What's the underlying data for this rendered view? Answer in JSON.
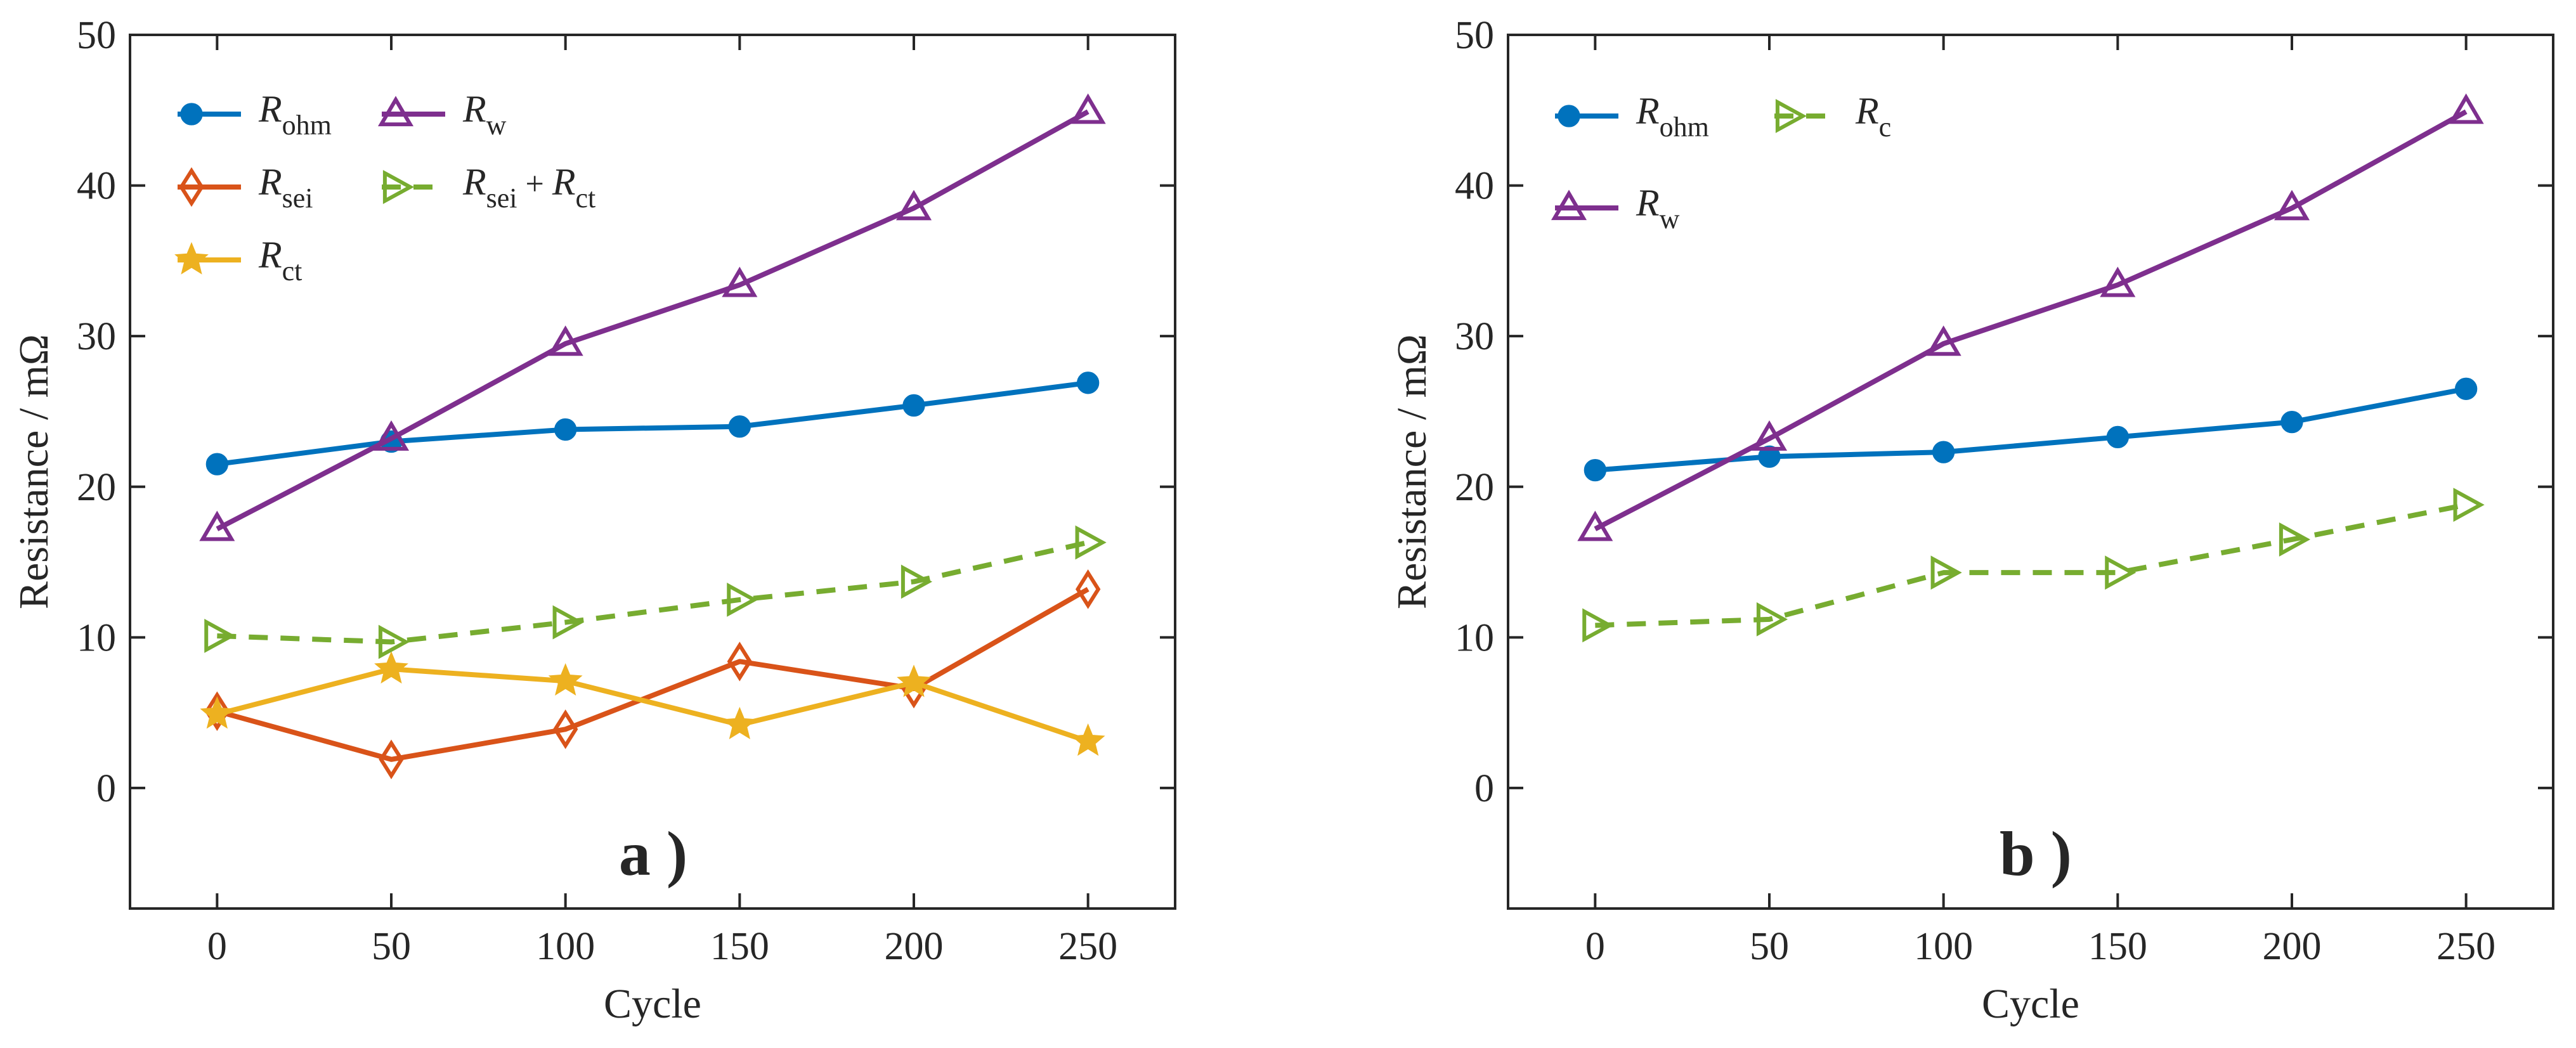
{
  "chart_data": [
    {
      "type": "line",
      "panel_label": "a )",
      "xlabel": "Cycle",
      "ylabel": "Resistance / mΩ",
      "xlim": [
        -25,
        275
      ],
      "ylim": [
        -8,
        50
      ],
      "xticks": [
        0,
        50,
        100,
        150,
        200,
        250
      ],
      "yticks": [
        0,
        10,
        20,
        30,
        40,
        50
      ],
      "legend_position": "top-left",
      "series": [
        {
          "name": "R_ohm",
          "label_main": "R",
          "label_sub": "ohm",
          "color": "#0072BD",
          "marker": "circle",
          "dashed": false,
          "x": [
            0,
            50,
            100,
            150,
            200,
            250
          ],
          "values": [
            21.5,
            23.0,
            23.8,
            24.0,
            25.4,
            26.9
          ]
        },
        {
          "name": "R_sei",
          "label_main": "R",
          "label_sub": "sei",
          "color": "#D95319",
          "marker": "diamond",
          "dashed": false,
          "x": [
            0,
            50,
            100,
            150,
            200,
            250
          ],
          "values": [
            5.1,
            1.9,
            3.9,
            8.4,
            6.6,
            13.2
          ]
        },
        {
          "name": "R_ct",
          "label_main": "R",
          "label_sub": "ct",
          "color": "#EDB120",
          "marker": "star",
          "dashed": false,
          "x": [
            0,
            50,
            100,
            150,
            200,
            250
          ],
          "values": [
            4.9,
            7.9,
            7.1,
            4.2,
            7.0,
            3.1
          ]
        },
        {
          "name": "R_w",
          "label_main": "R",
          "label_sub": "w",
          "color": "#7E2F8E",
          "marker": "triangle",
          "dashed": false,
          "x": [
            0,
            50,
            100,
            150,
            200,
            250
          ],
          "values": [
            17.2,
            23.2,
            29.5,
            33.4,
            38.5,
            44.9
          ]
        },
        {
          "name": "R_sei + R_ct",
          "label_main": "R",
          "label_sub": "sei",
          "label_op": "+",
          "label_main2": "R",
          "label_sub2": "ct",
          "color": "#77AC30",
          "marker": "triangle-right",
          "dashed": true,
          "x": [
            0,
            50,
            100,
            150,
            200,
            250
          ],
          "values": [
            10.1,
            9.7,
            11.0,
            12.5,
            13.7,
            16.3
          ]
        }
      ]
    },
    {
      "type": "line",
      "panel_label": "b )",
      "xlabel": "Cycle",
      "ylabel": "Resistance / mΩ",
      "xlim": [
        -25,
        275
      ],
      "ylim": [
        -8,
        50
      ],
      "xticks": [
        0,
        50,
        100,
        150,
        200,
        250
      ],
      "yticks": [
        0,
        10,
        20,
        30,
        40,
        50
      ],
      "legend_position": "top-left",
      "series": [
        {
          "name": "R_ohm",
          "label_main": "R",
          "label_sub": "ohm",
          "color": "#0072BD",
          "marker": "circle",
          "dashed": false,
          "x": [
            0,
            50,
            100,
            150,
            200,
            250
          ],
          "values": [
            21.1,
            22.0,
            22.3,
            23.3,
            24.3,
            26.5
          ]
        },
        {
          "name": "R_w",
          "label_main": "R",
          "label_sub": "w",
          "color": "#7E2F8E",
          "marker": "triangle",
          "dashed": false,
          "x": [
            0,
            50,
            100,
            150,
            200,
            250
          ],
          "values": [
            17.2,
            23.2,
            29.5,
            33.4,
            38.5,
            44.9
          ]
        },
        {
          "name": "R_c",
          "label_main": "R",
          "label_sub": "c",
          "color": "#77AC30",
          "marker": "triangle-right",
          "dashed": true,
          "x": [
            0,
            50,
            100,
            150,
            200,
            250
          ],
          "values": [
            10.8,
            11.2,
            14.3,
            14.3,
            16.5,
            18.8
          ]
        }
      ]
    }
  ]
}
